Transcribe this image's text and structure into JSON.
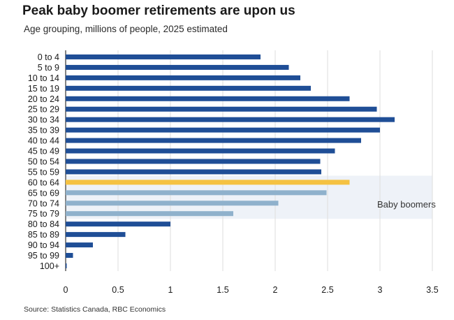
{
  "title": "Peak baby boomer retirements are upon us",
  "subtitle": "Age grouping, millions of people, 2025 estimated",
  "source": "Source: Statistics Canada, RBC Economics",
  "colors": {
    "default_bar": "#1f4e96",
    "highlight_bar": "#f5c242",
    "boomer_bar": "#8fb1cc",
    "boomer_band": "#eef2f8",
    "grid": "#dddddd"
  },
  "chart_data": {
    "type": "bar",
    "orientation": "horizontal",
    "title": "Peak baby boomer retirements are upon us",
    "subtitle": "Age grouping, millions of people, 2025 estimated",
    "categories": [
      "0 to 4",
      "5 to 9",
      "10 to 14",
      "15 to 19",
      "20 to 24",
      "25 to 29",
      "30 to 34",
      "35 to 39",
      "40 to 44",
      "45 to 49",
      "50 to 54",
      "55 to 59",
      "60 to 64",
      "65 to 69",
      "70 to 74",
      "75 to 79",
      "80 to 84",
      "85 to 89",
      "90 to 94",
      "95 to 99",
      "100+"
    ],
    "values": [
      1.86,
      2.13,
      2.24,
      2.34,
      2.71,
      2.97,
      3.14,
      3.0,
      2.82,
      2.57,
      2.43,
      2.44,
      2.71,
      2.49,
      2.03,
      1.6,
      1.0,
      0.57,
      0.26,
      0.07,
      0.01
    ],
    "bar_style": [
      "default",
      "default",
      "default",
      "default",
      "default",
      "default",
      "default",
      "default",
      "default",
      "default",
      "default",
      "default",
      "highlight",
      "boomer",
      "boomer",
      "boomer",
      "default",
      "default",
      "default",
      "default",
      "default"
    ],
    "xlim": [
      0,
      3.5
    ],
    "xticks": [
      0,
      0.5,
      1,
      1.5,
      2,
      2.5,
      3,
      3.5
    ],
    "xtick_labels": [
      "0",
      "0.5",
      "1",
      "1.5",
      "2",
      "2.5",
      "3",
      "3.5"
    ],
    "grid": "vertical",
    "annotation": {
      "text": "Baby boomers",
      "categories": [
        "60 to 64",
        "65 to 69",
        "70 to 74",
        "75 to 79"
      ]
    },
    "source": "Source: Statistics Canada, RBC Economics"
  }
}
